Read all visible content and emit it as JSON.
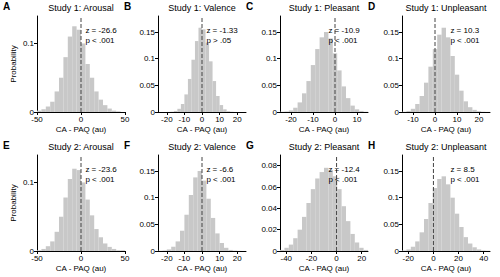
{
  "chart_data": [
    {
      "type": "histogram",
      "panel": "A",
      "title": "Study 1: Arousal",
      "x_label": "CA - PAQ (au)",
      "y_label": "Probability",
      "annotations": [
        "z = -26.6",
        "p < .001"
      ],
      "bins": [
        -50,
        -45,
        -40,
        -35,
        -30,
        -25,
        -20,
        -15,
        -10,
        -5,
        0,
        5,
        10,
        15,
        20,
        25,
        30,
        35,
        40,
        45,
        50
      ],
      "values": [
        0.002,
        0.004,
        0.008,
        0.015,
        0.03,
        0.05,
        0.08,
        0.11,
        0.125,
        0.12,
        0.1,
        0.07,
        0.05,
        0.03,
        0.018,
        0.01,
        0.005,
        0.002,
        0.001,
        0.0
      ],
      "color": "#c8c8c8",
      "xlim": [
        -50,
        50
      ],
      "ylim": [
        0,
        0.14
      ],
      "xticks": [
        -50,
        0,
        50
      ],
      "yticks": [
        0,
        0.1
      ],
      "vline": 0,
      "grid": false
    },
    {
      "type": "histogram",
      "panel": "B",
      "title": "Study 1: Valence",
      "x_label": "CA - PAQ (au)",
      "annotations": [
        "z = -1.33",
        "p > .05"
      ],
      "bins": [
        -20,
        -18,
        -16,
        -14,
        -12,
        -10,
        -8,
        -6,
        -4,
        -2,
        0,
        2,
        4,
        6,
        8,
        10,
        12,
        14,
        16,
        18,
        20
      ],
      "values": [
        0.0002,
        0.0006,
        0.002,
        0.006,
        0.015,
        0.033,
        0.062,
        0.098,
        0.133,
        0.158,
        0.155,
        0.13,
        0.095,
        0.058,
        0.03,
        0.013,
        0.005,
        0.0015,
        0.0005,
        0.0001
      ],
      "color": "#c8c8c8",
      "xlim": [
        -25,
        25
      ],
      "ylim": [
        0,
        0.18
      ],
      "xticks": [
        -20,
        -10,
        0,
        10,
        20
      ],
      "yticks": [
        0,
        0.05,
        0.1,
        0.15
      ],
      "vline": 0,
      "grid": false
    },
    {
      "type": "histogram",
      "panel": "C",
      "title": "Study 1: Pleasant",
      "x_label": "CA - PAQ (au)",
      "annotations": [
        "z = -10.9",
        "p < .001"
      ],
      "bins": [
        -25,
        -23,
        -21,
        -19,
        -17,
        -15,
        -13,
        -11,
        -9,
        -7,
        -5,
        -3,
        -1,
        1,
        3,
        5,
        7,
        9,
        11,
        13,
        15
      ],
      "values": [
        0.0005,
        0.001,
        0.003,
        0.008,
        0.018,
        0.035,
        0.058,
        0.088,
        0.118,
        0.14,
        0.15,
        0.138,
        0.11,
        0.078,
        0.048,
        0.026,
        0.012,
        0.005,
        0.002,
        0.0005
      ],
      "color": "#c8c8c8",
      "xlim": [
        -25,
        15
      ],
      "ylim": [
        0,
        0.18
      ],
      "xticks": [
        -20,
        -10,
        0,
        10
      ],
      "yticks": [
        0,
        0.05,
        0.1,
        0.15
      ],
      "vline": 0,
      "grid": false
    },
    {
      "type": "histogram",
      "panel": "D",
      "title": "Study 1: Unpleasant",
      "x_label": "CA - PAQ (au)",
      "annotations": [
        "z = 10.3",
        "p < .001"
      ],
      "bins": [
        -15,
        -13,
        -11,
        -9,
        -7,
        -5,
        -3,
        -1,
        1,
        3,
        5,
        7,
        9,
        11,
        13,
        15,
        17,
        19,
        21,
        23,
        25
      ],
      "values": [
        0.0005,
        0.002,
        0.006,
        0.015,
        0.03,
        0.055,
        0.085,
        0.118,
        0.145,
        0.158,
        0.14,
        0.105,
        0.07,
        0.04,
        0.02,
        0.009,
        0.004,
        0.0015,
        0.0005,
        0.0002
      ],
      "color": "#c8c8c8",
      "xlim": [
        -15,
        25
      ],
      "ylim": [
        0,
        0.18
      ],
      "xticks": [
        -10,
        0,
        10,
        20
      ],
      "yticks": [
        0,
        0.05,
        0.1,
        0.15
      ],
      "vline": 0,
      "grid": false
    },
    {
      "type": "histogram",
      "panel": "E",
      "title": "Study 2: Arousal",
      "x_label": "CA - PAQ (au)",
      "y_label": "Probability",
      "annotations": [
        "z = -23.6",
        "p < .001"
      ],
      "bins": [
        -50,
        -45,
        -40,
        -35,
        -30,
        -25,
        -20,
        -15,
        -10,
        -5,
        0,
        5,
        10,
        15,
        20,
        25,
        30,
        35,
        40,
        45,
        50
      ],
      "values": [
        0.001,
        0.003,
        0.007,
        0.014,
        0.028,
        0.05,
        0.078,
        0.105,
        0.12,
        0.118,
        0.1,
        0.075,
        0.052,
        0.032,
        0.02,
        0.011,
        0.006,
        0.003,
        0.001,
        0.001
      ],
      "color": "#c8c8c8",
      "xlim": [
        -50,
        50
      ],
      "ylim": [
        0,
        0.14
      ],
      "xticks": [
        -50,
        0,
        50
      ],
      "yticks": [
        0,
        0.1
      ],
      "vline": 0,
      "grid": false
    },
    {
      "type": "histogram",
      "panel": "F",
      "title": "Study 2: Valence",
      "x_label": "CA - PAQ (au)",
      "annotations": [
        "z = -6.6",
        "p < .001"
      ],
      "bins": [
        -25,
        -22.5,
        -20,
        -17.5,
        -15,
        -12.5,
        -10,
        -7.5,
        -5,
        -2.5,
        0,
        2.5,
        5,
        7.5,
        10,
        12.5,
        15,
        17.5,
        20,
        22.5,
        25
      ],
      "values": [
        0.0005,
        0.001,
        0.003,
        0.008,
        0.018,
        0.038,
        0.068,
        0.105,
        0.138,
        0.15,
        0.132,
        0.098,
        0.062,
        0.033,
        0.015,
        0.006,
        0.002,
        0.0008,
        0.0003,
        0.0001
      ],
      "color": "#c8c8c8",
      "xlim": [
        -25,
        25
      ],
      "ylim": [
        0,
        0.18
      ],
      "xticks": [
        -20,
        -10,
        0,
        10,
        20
      ],
      "yticks": [
        0,
        0.05,
        0.1,
        0.15
      ],
      "vline": 0,
      "grid": false
    },
    {
      "type": "histogram",
      "panel": "G",
      "title": "Study 2: Pleasant",
      "x_label": "CA - PAQ (au)",
      "annotations": [
        "z = -12.4",
        "p < .001"
      ],
      "bins": [
        -45,
        -41.5,
        -38,
        -34.5,
        -31,
        -27.5,
        -24,
        -20.5,
        -17,
        -13.5,
        -10,
        -6.5,
        -3,
        0.5,
        4,
        7.5,
        11,
        14.5,
        18,
        21.5,
        25
      ],
      "values": [
        0.001,
        0.003,
        0.006,
        0.012,
        0.02,
        0.032,
        0.045,
        0.058,
        0.068,
        0.074,
        0.078,
        0.076,
        0.07,
        0.058,
        0.042,
        0.028,
        0.016,
        0.008,
        0.003,
        0.001
      ],
      "color": "#c8c8c8",
      "xlim": [
        -45,
        25
      ],
      "ylim": [
        0,
        0.09
      ],
      "xticks": [
        -40,
        -20,
        0,
        20
      ],
      "yticks": [
        0,
        0.02,
        0.04,
        0.06,
        0.08
      ],
      "vline": 0,
      "grid": false
    },
    {
      "type": "histogram",
      "panel": "H",
      "title": "Study 2: Unpleasant",
      "x_label": "CA - PAQ (au)",
      "annotations": [
        "z = 8.5",
        "p < .001"
      ],
      "bins": [
        -25,
        -21.5,
        -18,
        -14.5,
        -11,
        -7.5,
        -4,
        -0.5,
        3,
        6.5,
        10,
        13.5,
        17,
        20.5,
        24,
        27.5,
        31,
        34.5,
        38,
        41.5,
        45
      ],
      "values": [
        0.001,
        0.003,
        0.008,
        0.018,
        0.035,
        0.06,
        0.09,
        0.118,
        0.135,
        0.14,
        0.125,
        0.1,
        0.07,
        0.045,
        0.026,
        0.014,
        0.007,
        0.003,
        0.001,
        0.0005
      ],
      "color": "#c8c8c8",
      "xlim": [
        -25,
        45
      ],
      "ylim": [
        0,
        0.18
      ],
      "xticks": [
        -20,
        0,
        20,
        40
      ],
      "yticks": [
        0,
        0.05,
        0.1,
        0.15
      ],
      "vline": 0,
      "grid": false
    }
  ]
}
